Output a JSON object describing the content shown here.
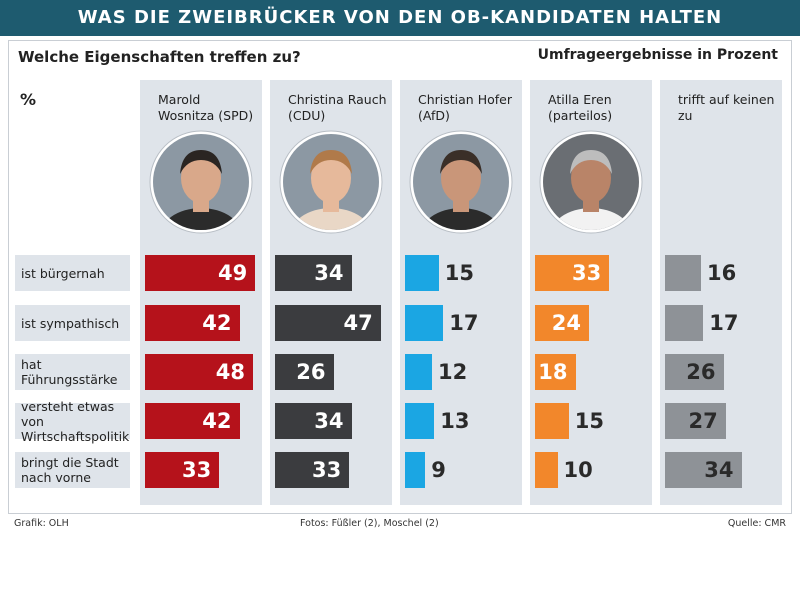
{
  "chart_data": {
    "type": "bar",
    "title": "WAS DIE ZWEIBRÜCKER VON DEN OB-KANDIDATEN HALTEN",
    "subtitle": "Welche Eigenschaften treffen zu?",
    "note": "Umfrageergebnisse in Prozent",
    "unit": "%",
    "categories": [
      "ist bürgernah",
      "ist sympathisch",
      "hat Führungsstärke",
      "versteht etwas von Wirtschaftspolitik",
      "bringt die Stadt nach vorne"
    ],
    "series": [
      {
        "name": "Marold Wosnitza (SPD)",
        "color": "#b5121b",
        "label_color": "#ffffff",
        "values": [
          49,
          42,
          48,
          42,
          33
        ]
      },
      {
        "name": "Christina Rauch (CDU)",
        "color": "#3b3c3f",
        "label_color": "#ffffff",
        "values": [
          34,
          47,
          26,
          34,
          33
        ]
      },
      {
        "name": "Christian Hofer (AfD)",
        "color": "#1ba6e3",
        "label_color": "#ffffff",
        "values": [
          15,
          17,
          12,
          13,
          9
        ]
      },
      {
        "name": "Atilla Eren (parteilos)",
        "color": "#f2872b",
        "label_color": "#ffffff",
        "values": [
          33,
          24,
          18,
          15,
          10
        ]
      },
      {
        "name": "trifft auf keinen zu",
        "color": "#8e9297",
        "label_color": "#2a2a2a",
        "values": [
          16,
          17,
          26,
          27,
          34
        ]
      }
    ],
    "footer": {
      "credit": "Grafik: OLH",
      "photos": "Fotos: Füßler (2), Moschel (2)",
      "source": "Quelle: CMR"
    }
  }
}
